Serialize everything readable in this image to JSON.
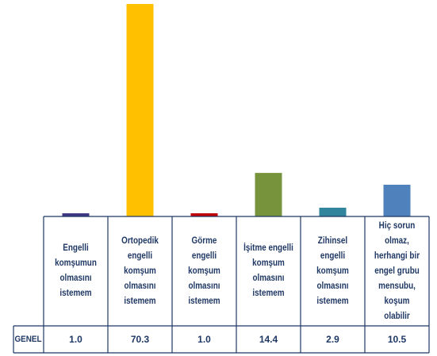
{
  "chart_data": {
    "type": "bar",
    "categories": [
      "Engelli komşumun olmasını istemem",
      "Ortopedik engelli komşum olmasını istemem",
      "Görme engelli komşum olmasını istemem",
      "İşitme engelli komşum olmasını istemem",
      "Zihinsel engelli komşum olmasını istemem",
      "Hiç sorun olmaz, herhangi bir engel grubu mensubu, koşum olabilir"
    ],
    "category_lines": [
      [
        "Engelli",
        "komşumun",
        "olmasını istemem"
      ],
      [
        "Ortopedik engelli",
        "komşum olmasını",
        "istemem"
      ],
      [
        "Görme engelli",
        "komşum olmasını",
        "istemem"
      ],
      [
        "İşitme engelli",
        "komşum olmasını",
        "istemem"
      ],
      [
        "Zihinsel engelli",
        "komşum olmasını",
        "istemem"
      ],
      [
        "Hiç sorun olmaz,",
        "herhangi bir",
        "engel grubu",
        "mensubu, koşum",
        "olabilir"
      ]
    ],
    "series": [
      {
        "name": "GENEL",
        "values": [
          1.0,
          70.3,
          1.0,
          14.4,
          2.9,
          10.5
        ]
      }
    ],
    "value_labels": [
      "1.0",
      "70.3",
      "1.0",
      "14.4",
      "2.9",
      "10.5"
    ],
    "colors": [
      "#403880",
      "#ffc000",
      "#c00000",
      "#77933c",
      "#31859c",
      "#4f81bd"
    ],
    "table_row_label": "GENEL",
    "ylim": [
      0,
      70.3
    ],
    "grid": false,
    "legend": "table-below"
  }
}
